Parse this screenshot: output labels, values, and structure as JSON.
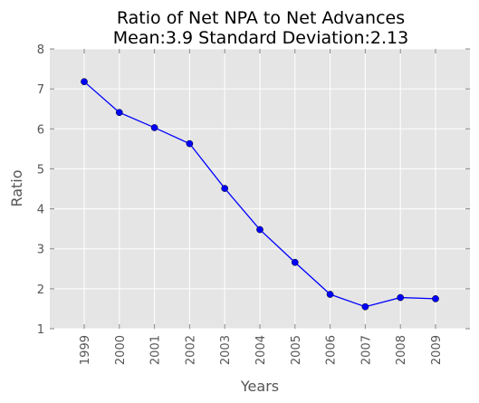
{
  "chart_data": {
    "type": "line",
    "title": "Ratio of Net NPA to Net Advances",
    "subtitle": "Mean:3.9 Standard Deviation:2.13",
    "xlabel": "Years",
    "ylabel": "Ratio",
    "categories": [
      "1999",
      "2000",
      "2001",
      "2002",
      "2003",
      "2004",
      "2005",
      "2006",
      "2007",
      "2008",
      "2009"
    ],
    "series": [
      {
        "values": [
          7.18,
          6.41,
          6.03,
          5.63,
          4.51,
          3.48,
          2.66,
          1.86,
          1.55,
          1.78,
          1.75
        ]
      }
    ],
    "yticks": [
      "1",
      "2",
      "3",
      "4",
      "5",
      "6",
      "7",
      "8"
    ],
    "ylim": [
      1,
      8
    ],
    "grid": true,
    "colors": {
      "line": "#0000ff",
      "marker": "#0000ff",
      "background": "#e5e5e5",
      "grid": "#ffffff"
    }
  }
}
